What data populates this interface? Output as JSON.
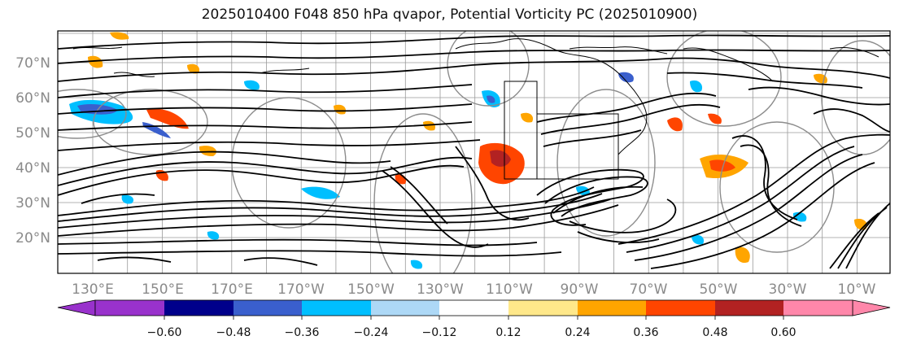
{
  "title": "2025010400 F048 850 hPa qvapor, Potential Vorticity PC (2025010900)",
  "map": {
    "lat_labels": [
      "70°N",
      "60°N",
      "50°N",
      "40°N",
      "30°N",
      "20°N"
    ],
    "lon_labels": [
      "130°E",
      "150°E",
      "170°E",
      "170°W",
      "150°W",
      "130°W",
      "110°W",
      "90°W",
      "70°W",
      "50°W",
      "30°W",
      "10°W"
    ]
  },
  "colorbar": {
    "colors": [
      "#9932cc",
      "#00008b",
      "#3a5fcd",
      "#00bfff",
      "#add8f6",
      "#ffffff",
      "#ffe88a",
      "#ffa500",
      "#ff4500",
      "#b22222",
      "#ff87aa"
    ],
    "tick_labels": [
      "−0.60",
      "−0.48",
      "−0.36",
      "−0.24",
      "−0.12",
      "0.12",
      "0.24",
      "0.36",
      "0.48",
      "0.60"
    ]
  }
}
